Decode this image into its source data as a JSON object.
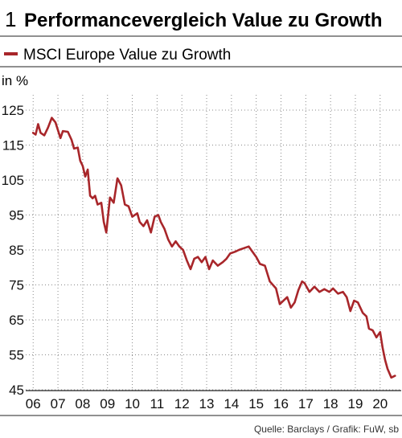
{
  "chart_data": {
    "type": "line",
    "number": "1",
    "title": "Performancevergleich Value zu Growth",
    "unit_label": "in %",
    "source": "Quelle: Barclays / Grafik: FuW, sb",
    "colors": {
      "line": "#a8262a",
      "grid": "#8a8a8a",
      "rule": "#222222"
    },
    "grid": "dotted",
    "legend_placement": "top-left",
    "series": [
      {
        "name": "MSCI Europe Value zu Growth",
        "color": "#a8262a",
        "points": [
          [
            2006.0,
            118.5
          ],
          [
            2006.1,
            118.0
          ],
          [
            2006.2,
            121.0
          ],
          [
            2006.3,
            118.5
          ],
          [
            2006.45,
            117.8
          ],
          [
            2006.6,
            120.0
          ],
          [
            2006.75,
            122.8
          ],
          [
            2006.9,
            121.5
          ],
          [
            2007.1,
            117.0
          ],
          [
            2007.2,
            119.0
          ],
          [
            2007.4,
            118.8
          ],
          [
            2007.55,
            116.5
          ],
          [
            2007.65,
            114.0
          ],
          [
            2007.8,
            114.3
          ],
          [
            2007.9,
            110.5
          ],
          [
            2008.0,
            109.0
          ],
          [
            2008.1,
            106.0
          ],
          [
            2008.2,
            108.0
          ],
          [
            2008.3,
            100.5
          ],
          [
            2008.4,
            99.8
          ],
          [
            2008.5,
            100.5
          ],
          [
            2008.6,
            98.0
          ],
          [
            2008.75,
            98.5
          ],
          [
            2008.85,
            93.0
          ],
          [
            2008.95,
            90.0
          ],
          [
            2009.1,
            100.0
          ],
          [
            2009.25,
            98.5
          ],
          [
            2009.4,
            105.5
          ],
          [
            2009.55,
            103.5
          ],
          [
            2009.7,
            98.0
          ],
          [
            2009.85,
            97.5
          ],
          [
            2010.0,
            94.5
          ],
          [
            2010.2,
            95.5
          ],
          [
            2010.3,
            93.0
          ],
          [
            2010.45,
            91.8
          ],
          [
            2010.6,
            93.5
          ],
          [
            2010.75,
            90.0
          ],
          [
            2010.9,
            94.5
          ],
          [
            2011.05,
            95.0
          ],
          [
            2011.15,
            93.0
          ],
          [
            2011.3,
            91.0
          ],
          [
            2011.45,
            88.0
          ],
          [
            2011.6,
            86.0
          ],
          [
            2011.75,
            87.5
          ],
          [
            2011.9,
            86.0
          ],
          [
            2012.05,
            85.0
          ],
          [
            2012.2,
            82.0
          ],
          [
            2012.35,
            79.5
          ],
          [
            2012.5,
            82.5
          ],
          [
            2012.65,
            83.0
          ],
          [
            2012.8,
            81.5
          ],
          [
            2012.95,
            83.0
          ],
          [
            2013.1,
            79.5
          ],
          [
            2013.25,
            82.0
          ],
          [
            2013.45,
            80.5
          ],
          [
            2013.65,
            81.5
          ],
          [
            2013.8,
            82.5
          ],
          [
            2013.95,
            84.0
          ],
          [
            2014.15,
            84.5
          ],
          [
            2014.3,
            85.0
          ],
          [
            2014.5,
            85.5
          ],
          [
            2014.7,
            86.0
          ],
          [
            2014.85,
            84.5
          ],
          [
            2015.0,
            83.0
          ],
          [
            2015.15,
            81.0
          ],
          [
            2015.35,
            80.5
          ],
          [
            2015.55,
            76.0
          ],
          [
            2015.8,
            74.0
          ],
          [
            2015.95,
            69.5
          ],
          [
            2016.1,
            70.5
          ],
          [
            2016.25,
            71.5
          ],
          [
            2016.4,
            68.5
          ],
          [
            2016.55,
            70.0
          ],
          [
            2016.7,
            73.5
          ],
          [
            2016.85,
            76.0
          ],
          [
            2016.95,
            75.5
          ],
          [
            2017.15,
            73.0
          ],
          [
            2017.35,
            74.5
          ],
          [
            2017.55,
            73.0
          ],
          [
            2017.75,
            73.8
          ],
          [
            2017.95,
            73.0
          ],
          [
            2018.1,
            74.0
          ],
          [
            2018.3,
            72.5
          ],
          [
            2018.5,
            73.0
          ],
          [
            2018.65,
            71.5
          ],
          [
            2018.8,
            67.5
          ],
          [
            2018.95,
            70.5
          ],
          [
            2019.1,
            70.0
          ],
          [
            2019.3,
            67.0
          ],
          [
            2019.45,
            66.0
          ],
          [
            2019.55,
            62.5
          ],
          [
            2019.7,
            62.0
          ],
          [
            2019.85,
            60.0
          ],
          [
            2020.0,
            61.5
          ],
          [
            2020.1,
            57.0
          ],
          [
            2020.2,
            53.5
          ],
          [
            2020.3,
            51.0
          ],
          [
            2020.45,
            48.5
          ],
          [
            2020.6,
            49.0
          ]
        ]
      }
    ],
    "x_ticks": [
      {
        "value": 2006,
        "label": "06"
      },
      {
        "value": 2007,
        "label": "07"
      },
      {
        "value": 2008,
        "label": "08"
      },
      {
        "value": 2009,
        "label": "09"
      },
      {
        "value": 2010,
        "label": "10"
      },
      {
        "value": 2011,
        "label": "11"
      },
      {
        "value": 2012,
        "label": "12"
      },
      {
        "value": 2013,
        "label": "13"
      },
      {
        "value": 2014,
        "label": "14"
      },
      {
        "value": 2015,
        "label": "15"
      },
      {
        "value": 2016,
        "label": "16"
      },
      {
        "value": 2017,
        "label": "17"
      },
      {
        "value": 2018,
        "label": "18"
      },
      {
        "value": 2019,
        "label": "19"
      },
      {
        "value": 2020,
        "label": "20"
      }
    ],
    "y_ticks": [
      {
        "value": 45,
        "label": "45"
      },
      {
        "value": 55,
        "label": "55"
      },
      {
        "value": 65,
        "label": "65"
      },
      {
        "value": 75,
        "label": "75"
      },
      {
        "value": 85,
        "label": "85"
      },
      {
        "value": 95,
        "label": "95"
      },
      {
        "value": 105,
        "label": "105"
      },
      {
        "value": 115,
        "label": "115"
      },
      {
        "value": 125,
        "label": "125"
      }
    ],
    "xlim": [
      2005.7,
      2020.85
    ],
    "ylim": [
      45,
      128
    ]
  }
}
